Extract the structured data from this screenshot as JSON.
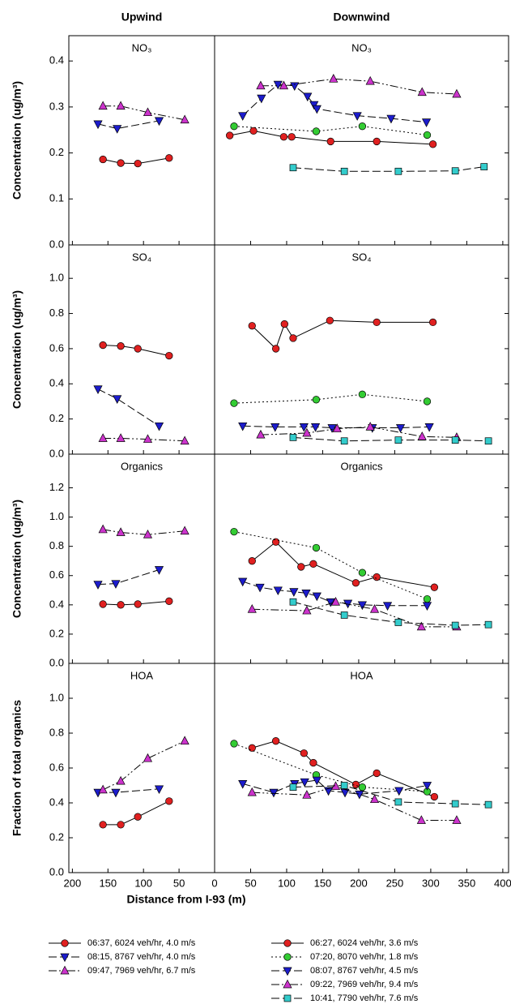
{
  "chart_data": [
    {
      "type": "line",
      "column_title": "Upwind",
      "title": "NO₃",
      "ylabel": "Concentration (ug/m³)",
      "xlim": [
        205,
        0
      ],
      "xticks": [
        200,
        150,
        100,
        50
      ],
      "ylim": [
        0,
        0.455
      ],
      "yticks": [
        {
          "value": 0,
          "label": "0.0"
        },
        0.1,
        0.2,
        0.3,
        0.4
      ],
      "series": [
        {
          "name": "06:37, 6024 veh/hr, 4.0 m/s",
          "color": "#e02020",
          "marker": "circle",
          "dash": "solid",
          "x": [
            157,
            132,
            108,
            64
          ],
          "values": [
            0.186,
            0.178,
            0.177,
            0.189
          ]
        },
        {
          "name": "08:15, 8767 veh/hr, 4.0 m/s",
          "color": "#1c1ccc",
          "marker": "triangle-down",
          "dash": "long-dash",
          "x": [
            164,
            137,
            78
          ],
          "values": [
            0.263,
            0.253,
            0.27
          ]
        },
        {
          "name": "09:47, 7969 veh/hr, 6.7 m/s",
          "color": "#cc33cc",
          "marker": "triangle-up",
          "dash": "dash-dot-dot",
          "x": [
            157,
            132,
            94,
            42
          ],
          "values": [
            0.302,
            0.302,
            0.288,
            0.272
          ]
        }
      ]
    },
    {
      "type": "line",
      "column_title": "Downwind",
      "title": "NO₃",
      "xlim": [
        0,
        408
      ],
      "xticks": [
        0,
        50,
        100,
        150,
        200,
        250,
        300,
        350,
        400
      ],
      "ylim": [
        0,
        0.455
      ],
      "series": [
        {
          "name": "06:27, 6024 veh/hr, 3.6 m/s",
          "color": "#e02020",
          "marker": "circle",
          "dash": "solid",
          "x": [
            21,
            54,
            96,
            107,
            161,
            225,
            303
          ],
          "values": [
            0.238,
            0.248,
            0.235,
            0.235,
            0.225,
            0.225,
            0.219
          ]
        },
        {
          "name": "07:20, 8070 veh/hr, 1.8 m/s",
          "color": "#33cc33",
          "marker": "circle",
          "dash": "dotted",
          "x": [
            27,
            141,
            205,
            295
          ],
          "values": [
            0.258,
            0.247,
            0.258,
            0.239
          ]
        },
        {
          "name": "08:07, 8767 veh/hr, 4.5 m/s",
          "color": "#1c1ccc",
          "marker": "triangle-down",
          "dash": "long-dash",
          "x": [
            39,
            65,
            88,
            111,
            129,
            138,
            142,
            198,
            245,
            294
          ],
          "values": [
            0.281,
            0.319,
            0.349,
            0.346,
            0.323,
            0.305,
            0.296,
            0.281,
            0.275,
            0.267
          ]
        },
        {
          "name": "09:22, 7969 veh/hr, 9.4 m/s",
          "color": "#cc33cc",
          "marker": "triangle-up",
          "dash": "dash-dot-dot",
          "x": [
            64,
            96,
            165,
            216,
            288,
            336
          ],
          "values": [
            0.346,
            0.346,
            0.361,
            0.356,
            0.332,
            0.328
          ]
        },
        {
          "name": "10:41, 7790 veh/hr, 7.6 m/s",
          "color": "#33cccc",
          "marker": "square",
          "dash": "long-dash",
          "x": [
            109,
            180,
            255,
            334,
            374
          ],
          "values": [
            0.168,
            0.16,
            0.16,
            0.161,
            0.17
          ]
        }
      ]
    },
    {
      "type": "line",
      "title": "SO₄",
      "ylabel": "Concentration (ug/m³)",
      "xlim": [
        205,
        0
      ],
      "xticks": [
        200,
        150,
        100,
        50
      ],
      "ylim": [
        0,
        1.19
      ],
      "yticks": [
        {
          "value": 0,
          "label": "0.0"
        },
        0.2,
        0.4,
        0.6,
        0.8,
        {
          "value": 1,
          "label": "1.0"
        }
      ],
      "series": [
        {
          "color": "#e02020",
          "marker": "circle",
          "dash": "solid",
          "x": [
            157,
            132,
            108,
            64
          ],
          "values": [
            0.62,
            0.615,
            0.6,
            0.56
          ]
        },
        {
          "color": "#1c1ccc",
          "marker": "triangle-down",
          "dash": "long-dash",
          "x": [
            164,
            137,
            78
          ],
          "values": [
            0.37,
            0.315,
            0.16
          ]
        },
        {
          "color": "#cc33cc",
          "marker": "triangle-up",
          "dash": "dash-dot-dot",
          "x": [
            157,
            132,
            94,
            42
          ],
          "values": [
            0.09,
            0.09,
            0.085,
            0.075
          ]
        }
      ]
    },
    {
      "type": "line",
      "title": "SO₄",
      "xlim": [
        0,
        408
      ],
      "xticks": [
        0,
        50,
        100,
        150,
        200,
        250,
        300,
        350,
        400
      ],
      "ylim": [
        0,
        1.19
      ],
      "series": [
        {
          "color": "#e02020",
          "marker": "circle",
          "dash": "solid",
          "x": [
            52,
            85,
            97,
            109,
            160,
            225,
            303
          ],
          "values": [
            0.73,
            0.6,
            0.74,
            0.66,
            0.76,
            0.75,
            0.75
          ]
        },
        {
          "color": "#33cc33",
          "marker": "circle",
          "dash": "dotted",
          "x": [
            27,
            141,
            205,
            295
          ],
          "values": [
            0.29,
            0.31,
            0.34,
            0.3
          ]
        },
        {
          "color": "#1c1ccc",
          "marker": "triangle-down",
          "dash": "long-dash",
          "x": [
            39,
            84,
            124,
            140,
            163,
            219,
            258,
            298
          ],
          "values": [
            0.16,
            0.155,
            0.155,
            0.155,
            0.15,
            0.15,
            0.15,
            0.155
          ]
        },
        {
          "color": "#cc33cc",
          "marker": "triangle-up",
          "dash": "dash-dot-dot",
          "x": [
            64,
            128,
            170,
            216,
            288,
            336
          ],
          "values": [
            0.11,
            0.12,
            0.145,
            0.155,
            0.1,
            0.095
          ]
        },
        {
          "color": "#33cccc",
          "marker": "square",
          "dash": "long-dash",
          "x": [
            109,
            180,
            255,
            334,
            380
          ],
          "values": [
            0.095,
            0.075,
            0.08,
            0.08,
            0.075
          ]
        }
      ]
    },
    {
      "type": "line",
      "title": "Organics",
      "ylabel": "Concentration (ug/m³)",
      "xlim": [
        205,
        0
      ],
      "xticks": [
        200,
        150,
        100,
        50
      ],
      "ylim": [
        0,
        1.43
      ],
      "yticks": [
        {
          "value": 0,
          "label": "0.0"
        },
        0.2,
        0.4,
        0.6,
        0.8,
        {
          "value": 1,
          "label": "1.0"
        },
        1.2
      ],
      "series": [
        {
          "color": "#e02020",
          "marker": "circle",
          "dash": "solid",
          "x": [
            157,
            132,
            108,
            64
          ],
          "values": [
            0.405,
            0.4,
            0.405,
            0.425
          ]
        },
        {
          "color": "#1c1ccc",
          "marker": "triangle-down",
          "dash": "long-dash",
          "x": [
            164,
            139,
            78
          ],
          "values": [
            0.54,
            0.545,
            0.64
          ]
        },
        {
          "color": "#cc33cc",
          "marker": "triangle-up",
          "dash": "dash-dot-dot",
          "x": [
            157,
            132,
            94,
            42
          ],
          "values": [
            0.915,
            0.895,
            0.88,
            0.905
          ]
        }
      ]
    },
    {
      "type": "line",
      "title": "Organics",
      "xlim": [
        0,
        408
      ],
      "xticks": [
        0,
        50,
        100,
        150,
        200,
        250,
        300,
        350,
        400
      ],
      "ylim": [
        0,
        1.43
      ],
      "series": [
        {
          "color": "#e02020",
          "marker": "circle",
          "dash": "solid",
          "x": [
            52,
            85,
            120,
            137,
            196,
            225,
            305
          ],
          "values": [
            0.7,
            0.83,
            0.66,
            0.68,
            0.55,
            0.59,
            0.52
          ]
        },
        {
          "color": "#33cc33",
          "marker": "circle",
          "dash": "dotted",
          "x": [
            27,
            141,
            205,
            295
          ],
          "values": [
            0.9,
            0.79,
            0.62,
            0.44
          ]
        },
        {
          "color": "#1c1ccc",
          "marker": "triangle-down",
          "dash": "long-dash",
          "x": [
            39,
            63,
            88,
            110,
            127,
            142,
            161,
            185,
            205,
            240,
            295
          ],
          "values": [
            0.56,
            0.52,
            0.5,
            0.49,
            0.48,
            0.46,
            0.42,
            0.41,
            0.4,
            0.395,
            0.395
          ]
        },
        {
          "color": "#cc33cc",
          "marker": "triangle-up",
          "dash": "dash-dot-dot",
          "x": [
            52,
            128,
            168,
            222,
            287,
            336
          ],
          "values": [
            0.37,
            0.36,
            0.42,
            0.37,
            0.25,
            0.25
          ]
        },
        {
          "color": "#33cccc",
          "marker": "square",
          "dash": "long-dash",
          "x": [
            109,
            180,
            255,
            334,
            380
          ],
          "values": [
            0.42,
            0.33,
            0.28,
            0.26,
            0.265
          ]
        }
      ]
    },
    {
      "type": "line",
      "title": "HOA",
      "ylabel": "Fraction of total organics",
      "xlabel": "Distance from I-93 (m)",
      "xlim": [
        205,
        0
      ],
      "xticks": [
        200,
        150,
        100,
        50
      ],
      "ylim": [
        0,
        1.2
      ],
      "yticks": [
        {
          "value": 0,
          "label": "0.0"
        },
        0.2,
        0.4,
        0.6,
        0.8,
        {
          "value": 1,
          "label": "1.0"
        }
      ],
      "series": [
        {
          "color": "#e02020",
          "marker": "circle",
          "dash": "solid",
          "x": [
            157,
            132,
            108,
            64
          ],
          "values": [
            0.275,
            0.275,
            0.32,
            0.41
          ]
        },
        {
          "color": "#1c1ccc",
          "marker": "triangle-down",
          "dash": "long-dash",
          "x": [
            164,
            139,
            78
          ],
          "values": [
            0.46,
            0.46,
            0.48
          ]
        },
        {
          "color": "#cc33cc",
          "marker": "triangle-up",
          "dash": "dash-dot-dot",
          "x": [
            157,
            132,
            94,
            42
          ],
          "values": [
            0.475,
            0.525,
            0.655,
            0.755
          ]
        }
      ]
    },
    {
      "type": "line",
      "title": "HOA",
      "xlim": [
        0,
        408
      ],
      "xticks": [
        0,
        50,
        100,
        150,
        200,
        250,
        300,
        350,
        400
      ],
      "ylim": [
        0,
        1.2
      ],
      "series": [
        {
          "color": "#e02020",
          "marker": "circle",
          "dash": "solid",
          "x": [
            52,
            85,
            124,
            137,
            196,
            225,
            305
          ],
          "values": [
            0.715,
            0.755,
            0.685,
            0.63,
            0.505,
            0.57,
            0.435
          ]
        },
        {
          "color": "#33cc33",
          "marker": "circle",
          "dash": "dotted",
          "x": [
            27,
            141,
            205,
            295
          ],
          "values": [
            0.74,
            0.56,
            0.49,
            0.465
          ]
        },
        {
          "color": "#1c1ccc",
          "marker": "triangle-down",
          "dash": "long-dash",
          "x": [
            39,
            82,
            111,
            125,
            142,
            158,
            181,
            201,
            256,
            295
          ],
          "values": [
            0.51,
            0.46,
            0.51,
            0.52,
            0.53,
            0.47,
            0.46,
            0.45,
            0.47,
            0.5
          ]
        },
        {
          "color": "#cc33cc",
          "marker": "triangle-up",
          "dash": "dash-dot-dot",
          "x": [
            52,
            128,
            168,
            222,
            287,
            336
          ],
          "values": [
            0.46,
            0.445,
            0.495,
            0.42,
            0.3,
            0.3
          ]
        },
        {
          "color": "#33cccc",
          "marker": "square",
          "dash": "long-dash",
          "x": [
            109,
            180,
            255,
            334,
            380
          ],
          "values": [
            0.49,
            0.5,
            0.405,
            0.395,
            0.39
          ]
        }
      ]
    }
  ]
}
